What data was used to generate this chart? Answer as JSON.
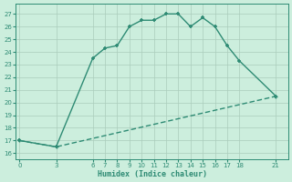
{
  "title": "",
  "xlabel": "Humidex (Indice chaleur)",
  "line1_x": [
    0,
    3,
    6,
    7,
    8,
    9,
    10,
    11,
    12,
    13,
    14,
    15,
    16,
    17,
    18,
    21
  ],
  "line1_y": [
    17.0,
    16.5,
    23.5,
    24.3,
    24.5,
    26.0,
    26.5,
    26.5,
    27.0,
    27.0,
    26.0,
    26.7,
    26.0,
    24.5,
    23.3,
    20.5
  ],
  "line2_x": [
    0,
    3,
    21
  ],
  "line2_y": [
    17.0,
    16.5,
    20.5
  ],
  "line_color": "#2e8b74",
  "bg_color": "#cceedd",
  "grid_color": "#aaccbb",
  "text_color": "#2e8b74",
  "xticks": [
    0,
    3,
    6,
    7,
    8,
    9,
    10,
    11,
    12,
    13,
    14,
    15,
    16,
    17,
    18,
    21
  ],
  "yticks": [
    16,
    17,
    18,
    19,
    20,
    21,
    22,
    23,
    24,
    25,
    26,
    27
  ],
  "xlim": [
    -0.3,
    22
  ],
  "ylim": [
    15.5,
    27.8
  ],
  "markersize": 3,
  "linewidth": 1.0
}
